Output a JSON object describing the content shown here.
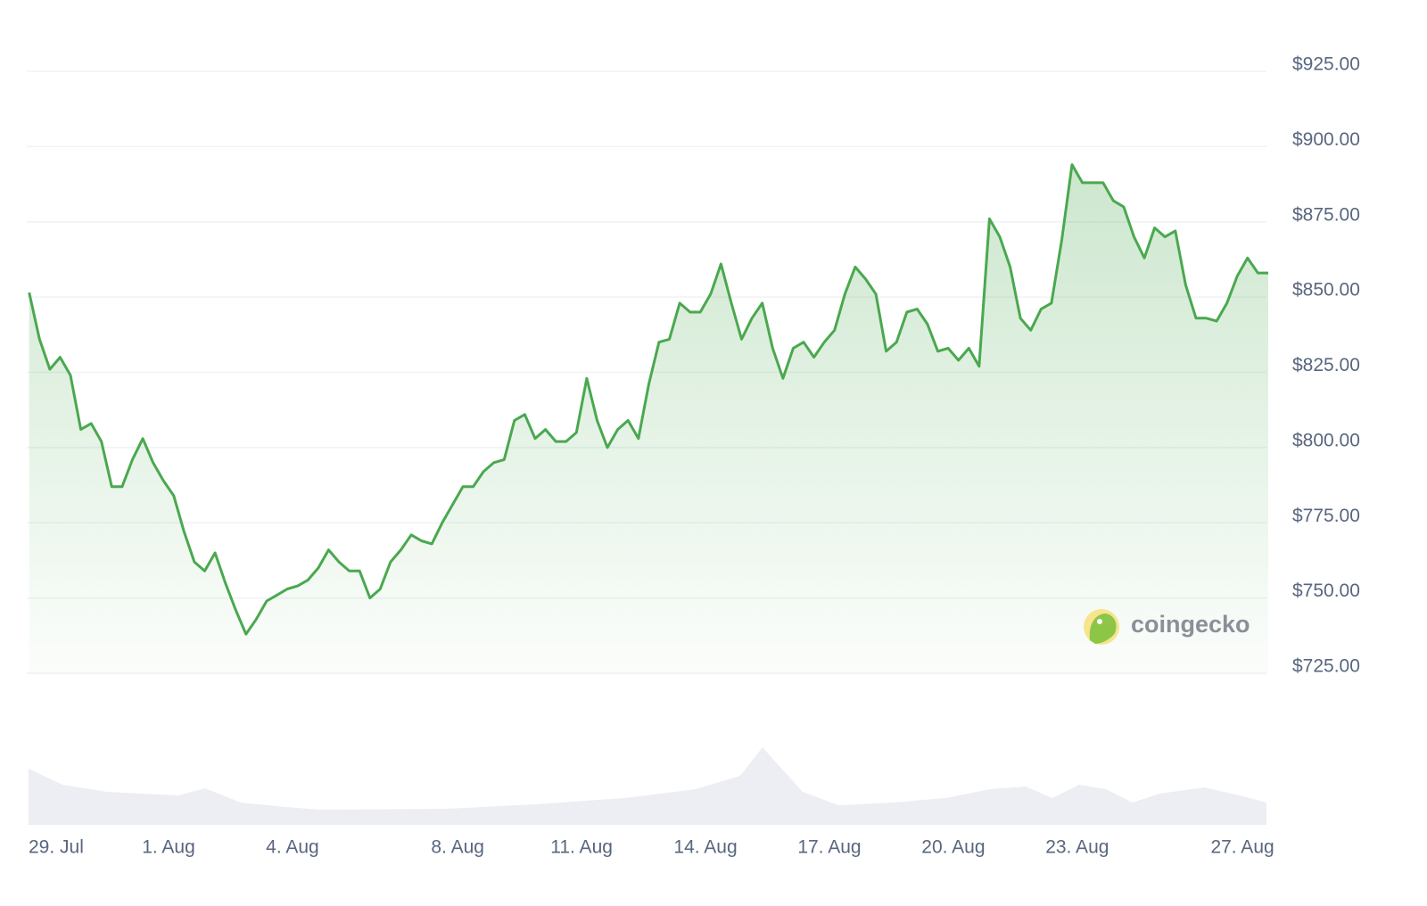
{
  "chart_data": {
    "type": "line",
    "color": "#4aa84f",
    "watermark": "coingecko",
    "values": [
      851.5,
      836,
      826,
      830,
      824,
      806,
      808,
      802,
      787,
      787,
      796,
      803,
      795,
      789,
      784,
      772,
      762,
      759,
      765,
      755,
      746,
      738,
      743,
      749,
      751,
      753,
      754,
      756,
      760,
      766,
      762,
      759,
      759,
      750,
      753,
      762,
      766,
      771,
      769,
      768,
      775,
      781,
      787,
      787,
      792,
      795,
      796,
      809,
      811,
      803,
      806,
      802,
      802,
      805,
      823,
      809,
      800,
      806,
      809,
      803,
      821,
      835,
      836,
      848,
      845,
      845,
      851,
      861,
      848,
      836,
      843,
      848,
      833,
      823,
      833,
      835,
      830,
      835,
      839,
      851,
      860,
      856,
      851,
      832,
      835,
      845,
      846,
      841,
      832,
      833,
      829,
      833,
      827,
      876,
      870,
      860,
      843,
      839,
      846,
      848,
      869,
      894,
      888,
      888,
      888,
      882,
      880,
      870,
      863,
      873,
      870,
      872,
      854,
      843,
      843,
      842,
      848,
      857,
      863,
      858,
      858
    ],
    "xlim": [
      0,
      120
    ],
    "xticks": [
      {
        "value": 1.5,
        "label": "29. Jul"
      },
      {
        "value": 13.5,
        "label": "1. Aug"
      },
      {
        "value": 25.5,
        "label": "4. Aug"
      },
      {
        "value": 41.5,
        "label": "8. Aug"
      },
      {
        "value": 53.5,
        "label": "11. Aug"
      },
      {
        "value": 65.5,
        "label": "14. Aug"
      },
      {
        "value": 77.5,
        "label": "17. Aug"
      },
      {
        "value": 89.5,
        "label": "20. Aug"
      },
      {
        "value": 101.5,
        "label": "23. Aug"
      },
      {
        "value": 117.5,
        "label": "27. Aug"
      }
    ],
    "ylim": [
      725,
      925
    ],
    "yticks": [
      {
        "value": 725,
        "label": "$725.00"
      },
      {
        "value": 750,
        "label": "$750.00"
      },
      {
        "value": 775,
        "label": "$775.00"
      },
      {
        "value": 800,
        "label": "$800.00"
      },
      {
        "value": 825,
        "label": "$825.00"
      },
      {
        "value": 850,
        "label": "$850.00"
      },
      {
        "value": 875,
        "label": "$875.00"
      },
      {
        "value": 900,
        "label": "$900.00"
      },
      {
        "value": 925,
        "label": "$925.00"
      }
    ],
    "grid": true
  }
}
